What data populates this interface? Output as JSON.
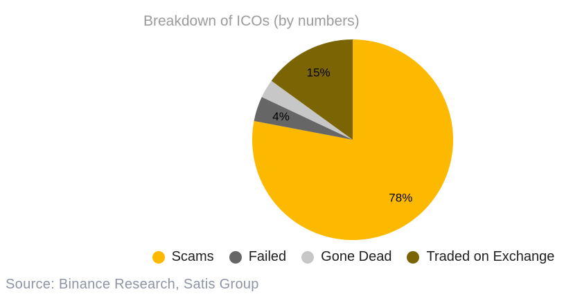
{
  "title": "Breakdown of ICOs (by numbers)",
  "source_note": "Source: Binance Research, Satis Group",
  "chart_data": {
    "type": "pie",
    "title": "Breakdown of ICOs (by numbers)",
    "units": "percent",
    "categories": [
      "Scams",
      "Failed",
      "Gone Dead",
      "Traded on Exchange"
    ],
    "values": [
      78,
      4,
      3,
      15
    ],
    "data_labels": [
      "78%",
      "4%",
      "",
      "15%"
    ],
    "colors": [
      "#FCB900",
      "#666666",
      "#C7C7C7",
      "#7B6404"
    ],
    "slice_label_color": "#000000",
    "start_angle_deg": 0,
    "direction": "clockwise",
    "legend_position": "bottom",
    "grid": false
  }
}
